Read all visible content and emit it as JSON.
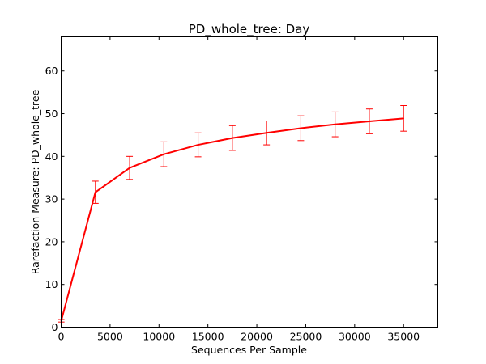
{
  "chart_data": {
    "type": "line",
    "title": "PD_whole_tree: Day",
    "xlabel": "Sequences Per Sample",
    "ylabel": "Rarefaction Measure: PD_whole_tree",
    "xlim": [
      0,
      38500
    ],
    "ylim": [
      0,
      68
    ],
    "xticks": [
      0,
      5000,
      10000,
      15000,
      20000,
      25000,
      30000,
      35000
    ],
    "yticks": [
      0,
      10,
      20,
      30,
      40,
      50,
      60
    ],
    "grid": false,
    "legend": "none",
    "series": [
      {
        "color": "#ff0000",
        "points": [
          {
            "x": 10,
            "y": 1.5,
            "err": 0.3
          },
          {
            "x": 3500,
            "y": 31.6,
            "err": 2.6
          },
          {
            "x": 7000,
            "y": 37.3,
            "err": 2.7
          },
          {
            "x": 10500,
            "y": 40.5,
            "err": 2.9
          },
          {
            "x": 14000,
            "y": 42.7,
            "err": 2.8
          },
          {
            "x": 17500,
            "y": 44.3,
            "err": 2.9
          },
          {
            "x": 21000,
            "y": 45.5,
            "err": 2.8
          },
          {
            "x": 24500,
            "y": 46.6,
            "err": 2.9
          },
          {
            "x": 28000,
            "y": 47.5,
            "err": 2.9
          },
          {
            "x": 31500,
            "y": 48.2,
            "err": 2.9
          },
          {
            "x": 35000,
            "y": 48.9,
            "err": 3.0
          }
        ]
      }
    ]
  }
}
